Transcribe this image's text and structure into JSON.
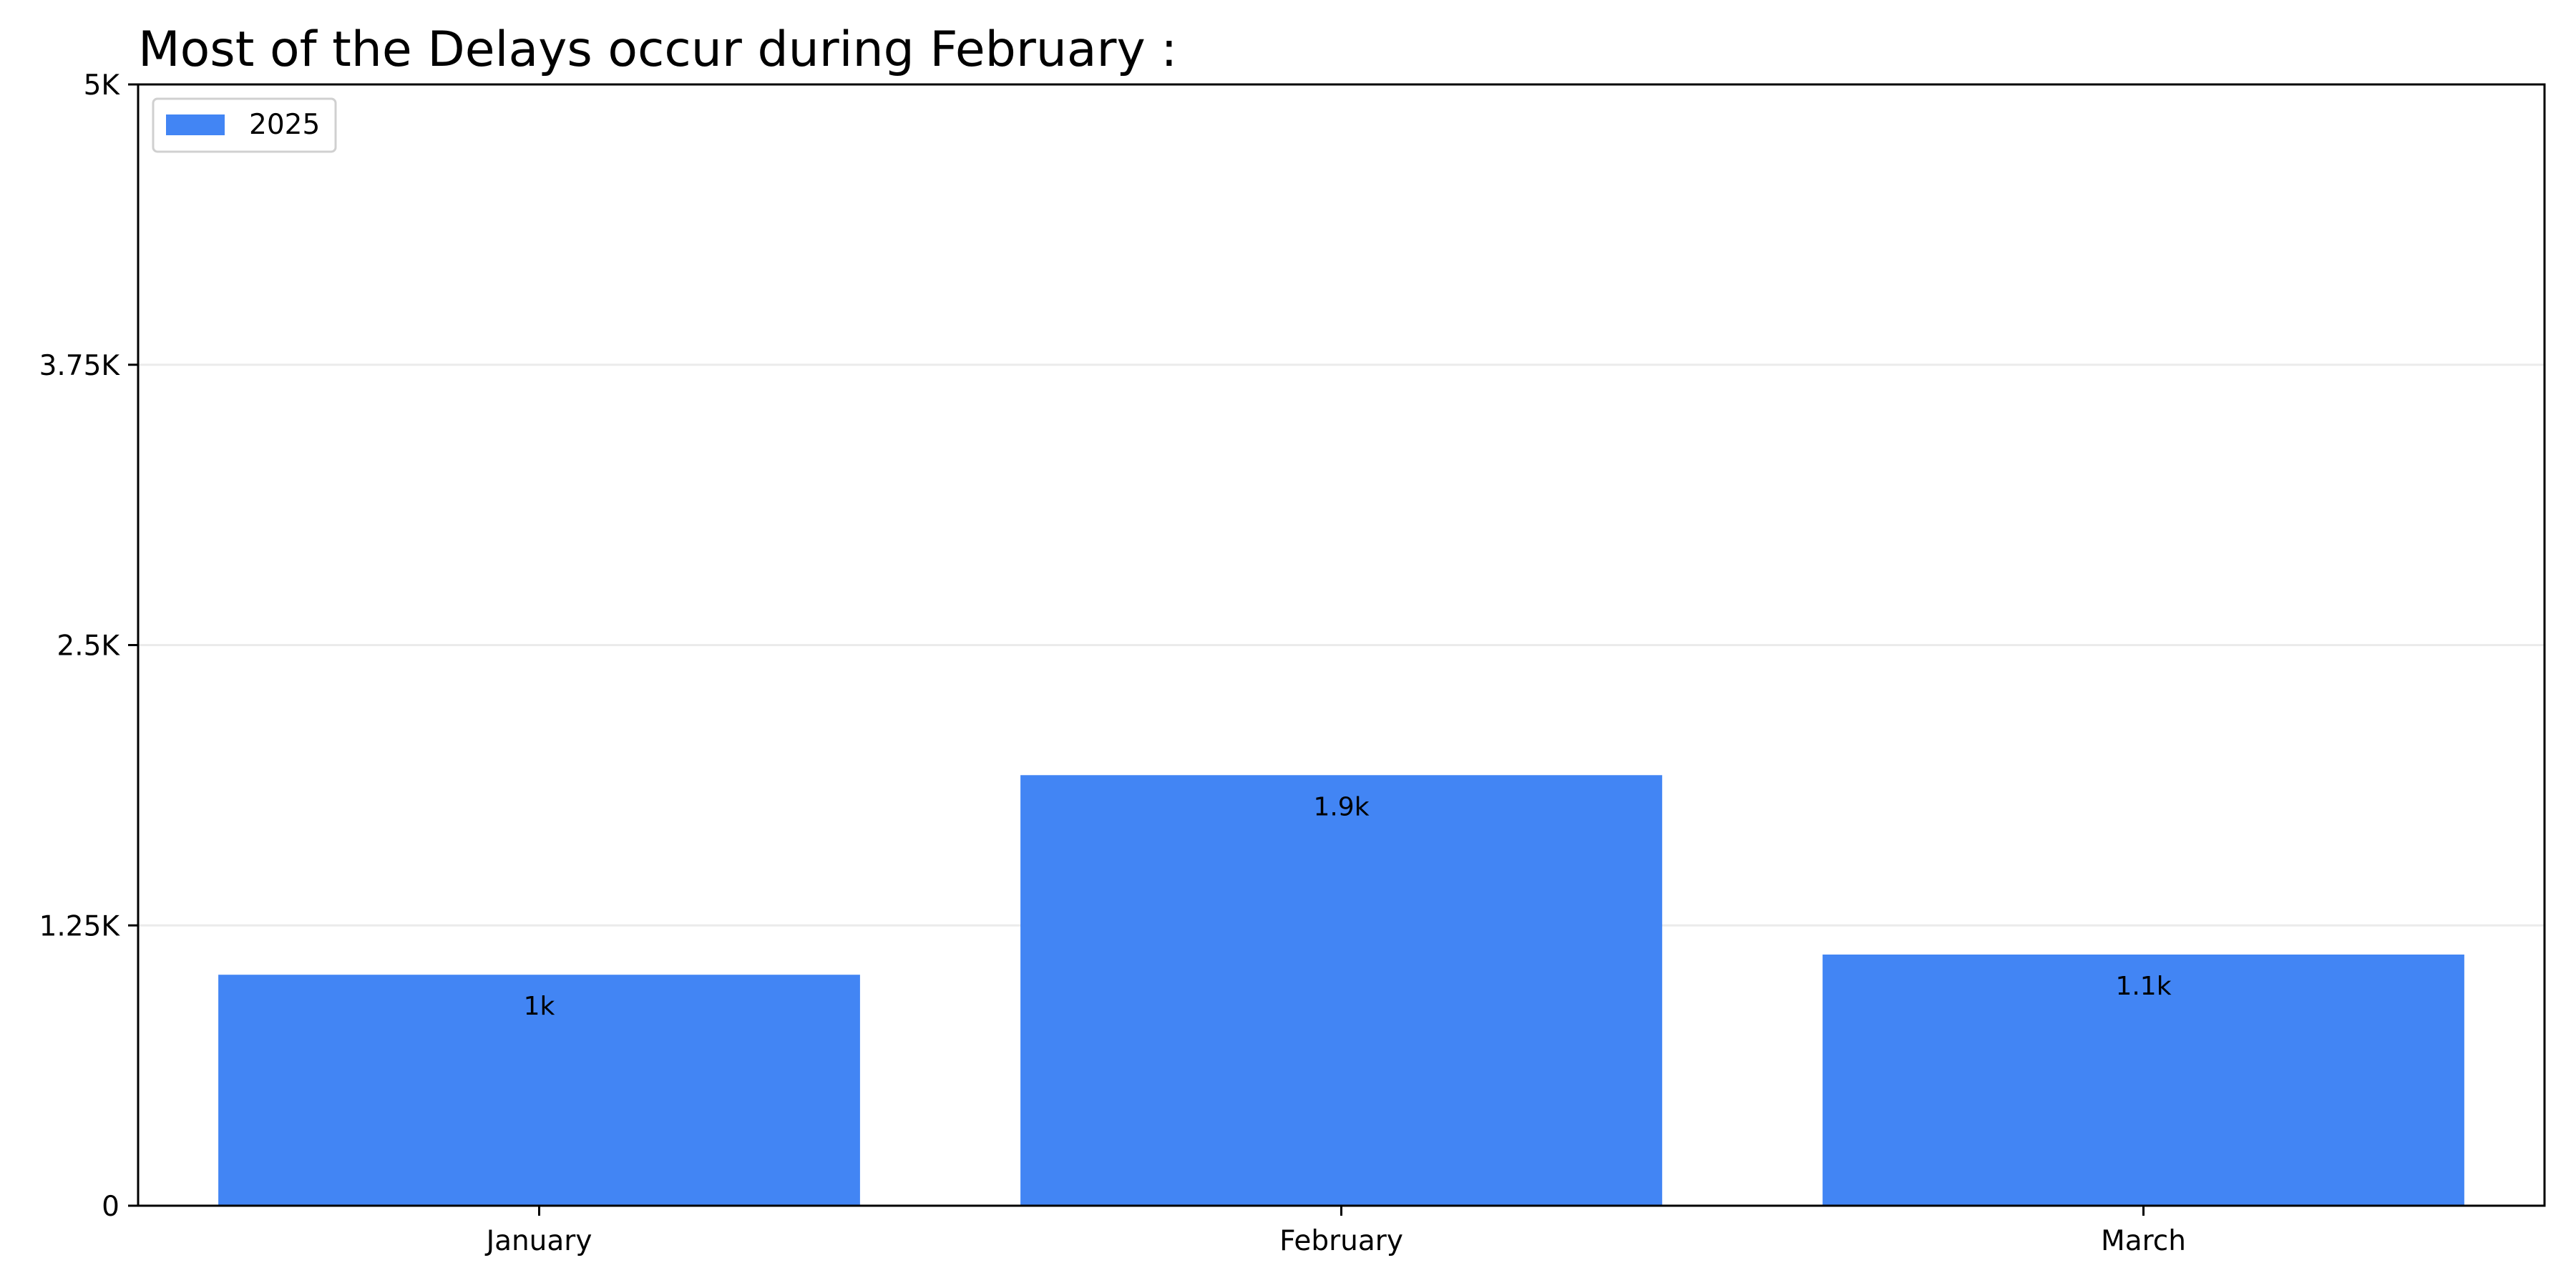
{
  "chart_data": {
    "type": "bar",
    "title": "Most of the Delays occur during February :",
    "categories": [
      "January",
      "February",
      "March"
    ],
    "series": [
      {
        "name": "2025",
        "values": [
          1030,
          1920,
          1120
        ],
        "labels": [
          "1k",
          "1.9k",
          "1.1k"
        ],
        "color": "#4285F4"
      }
    ],
    "xlabel": "",
    "ylabel": "",
    "ylim": [
      0,
      5000
    ],
    "yticks": [
      {
        "value": 0,
        "label": "0"
      },
      {
        "value": 1250,
        "label": "1.25K"
      },
      {
        "value": 2500,
        "label": "2.5K"
      },
      {
        "value": 3750,
        "label": "3.75K"
      },
      {
        "value": 5000,
        "label": "5K"
      }
    ],
    "grid": "y",
    "legend_position": "top-left"
  }
}
